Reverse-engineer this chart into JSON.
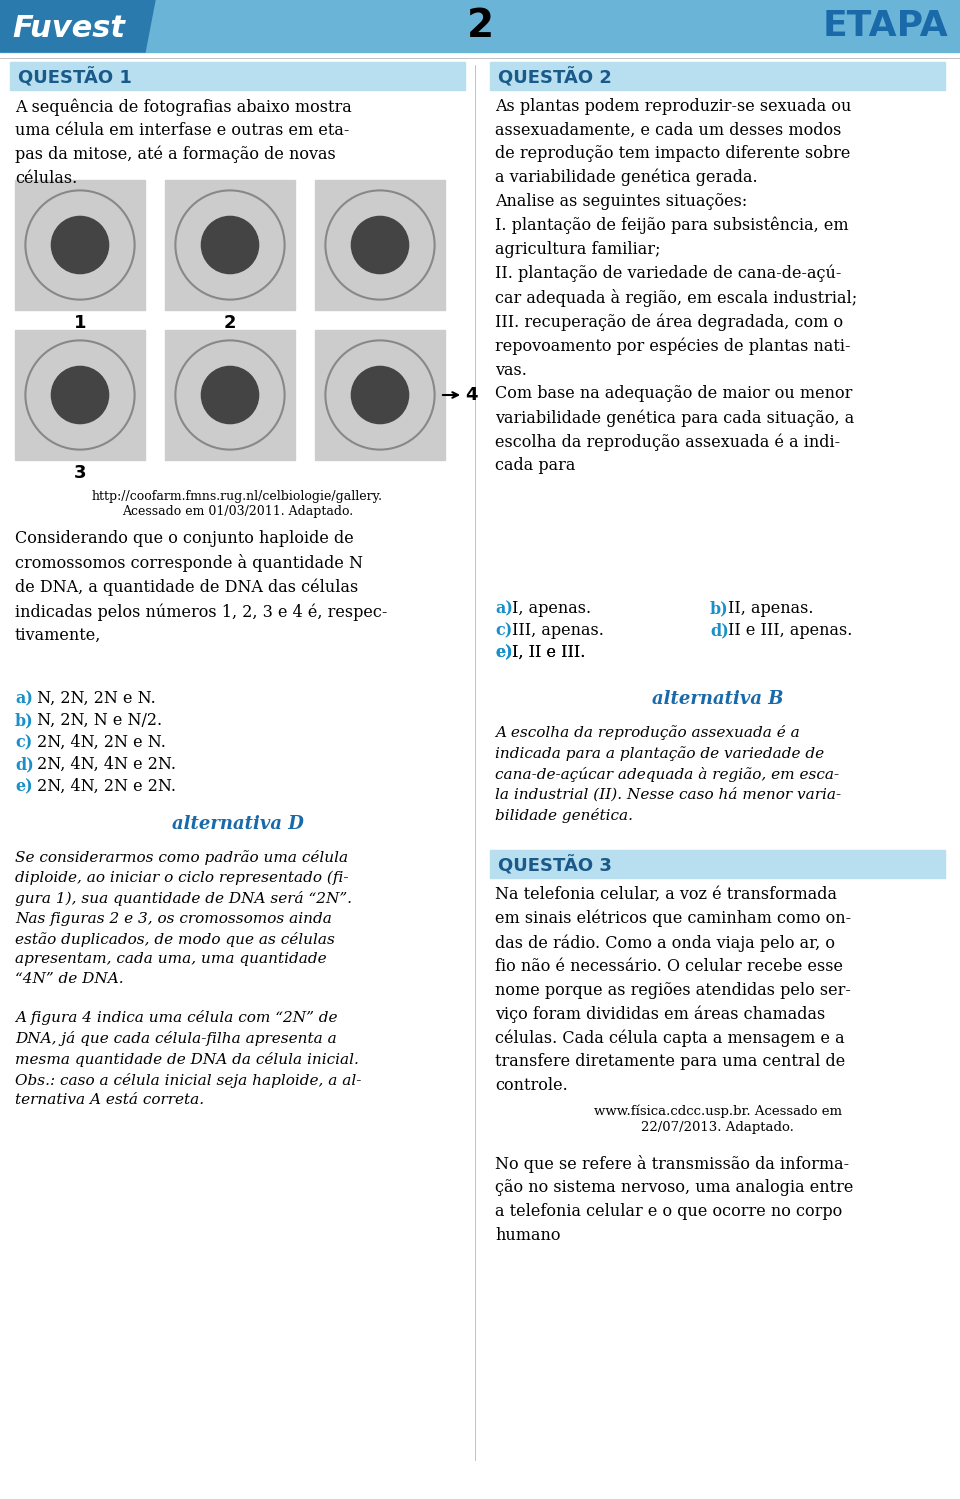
{
  "header_bg": "#6ab4d8",
  "header_dark_bg": "#2a7aad",
  "fuvest_text": "Fuvest",
  "number_text": "2",
  "etapa_text": "ETAPA",
  "q1_title": "QUESTÃO 1",
  "q2_title": "QUESTÃO 2",
  "q3_title": "QUESTÃO 3",
  "section_bg": "#b8dff0",
  "section_title_color": "#1a5a8a",
  "body_color": "#000000",
  "answer_color": "#1a90c8",
  "alt_d_color": "#1a6aaa",
  "page_bg": "#ffffff",
  "q1_body": "A sequência de fotografias abaixo mostra\numa célula em interfase e outras em eta-\npas da mitose, até a formação de novas\ncélulas.",
  "q1_consider": "Considerando que o conjunto haploide de\ncromossomos corresponde à quantidade N\nde DNA, a quantidade de DNA das células\nindicadas pelos números 1, 2, 3 e 4 é, respec-\ntivamente,",
  "q1_a": "a) N, 2N, 2N e N.",
  "q1_b": "b) N, 2N, N e N/2.",
  "q1_c": "c) 2N, 4N, 2N e N.",
  "q1_d": "d) 2N, 4N, 4N e 2N.",
  "q1_e": "e) 2N, 4N, 2N e 2N.",
  "q1_altd": "alternativa D",
  "q1_expl1": "Se considerarmos como padrão uma célula\ndiploide, ao iniciar o ciclo representado (fi-\ngura 1), sua quantidade de DNA será “2N”.\nNas figuras 2 e 3, os cromossomos ainda\nestão duplicados, de modo que as células\napresentam, cada uma, uma quantidade\n“4N” de DNA.",
  "q1_expl2": "A figura 4 indica uma célula com “2N” de\nDNA, já que cada célula-filha apresenta a\nmesma quantidade de DNA da célula inicial.\nObs.: caso a célula inicial seja haploide, a al-\nternativa A está correta.",
  "q2_body": "As plantas podem reproduzir-se sexuada ou\nassexuadamente, e cada um desses modos\nde reprodução tem impacto diferente sobre\na variabilidade genética gerada.\nAnalise as seguintes situações:\nI. plantação de feijão para subsistência, em\nagricultura familiar;\nII. plantação de variedade de cana-de-açú-\ncar adequada à região, em escala industrial;\nIII. recuperação de área degradada, com o\nrepovoamento por espécies de plantas nati-\nvas.\nCom base na adequação de maior ou menor\nvariabilidade genética para cada situação, a\nescolha da reprodução assexuada é a indi-\ncada para",
  "q2_a": "a) I, apenas.",
  "q2_b": "b) II, apenas.",
  "q2_c": "c) III, apenas.",
  "q2_d": "d) II e III, apenas.",
  "q2_e": "e) I, II e III.",
  "q2_altb": "alternativa B",
  "q2_expl": "A escolha da reprodução assexuada é a\nindicada para a plantação de variedade de\ncana-de-açúcar adequada à região, em esca-\nla industrial (II). Nesse caso há menor varia-\nbilidade genética.",
  "q3_title_text": "QUESTÃO 3",
  "q3_body": "Na telefonia celular, a voz é transformada\nem sinais elétricos que caminham como on-\ndas de rádio. Como a onda viaja pelo ar, o\nfio não é necessário. O celular recebe esse\nnome porque as regiões atendidas pelo ser-\nviço foram divididas em áreas chamadas\ncélulas. Cada célula capta a mensagem e a\ntransfere diretamente para uma central de\ncontrole.",
  "q3_source": "www.física.cdcc.usp.br. Acessado em\n22/07/2013. Adaptado.",
  "q3_end": "No que se refere à transmissão da informa-\nção no sistema nervoso, uma analogia entre\na telefonia celular e o que ocorre no corpo\nhumano",
  "url_text": "http://coofarm.fmns.rug.nl/celbiologie/gallery.\nAcessado em 01/03/2011. Adaptado.",
  "img1_label": "1",
  "img2_label": "2",
  "img3_label": "3",
  "img4_label": "4"
}
